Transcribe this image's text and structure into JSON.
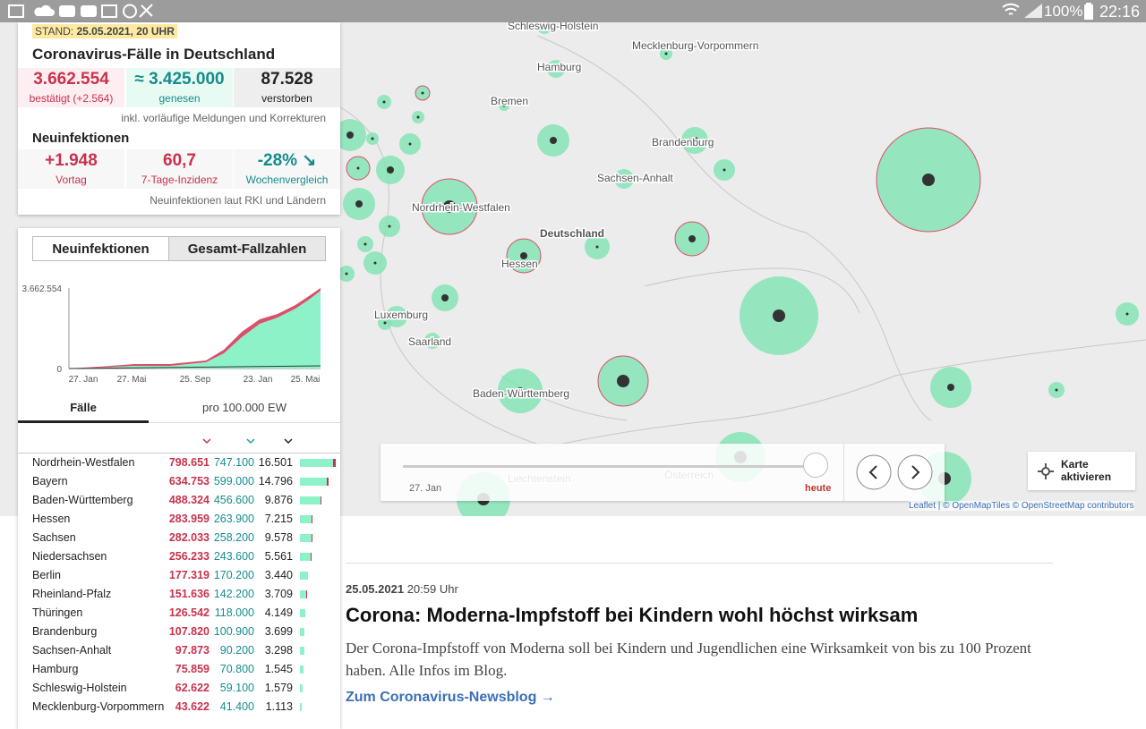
{
  "status_bar": {
    "battery": "100%",
    "time": "22:16"
  },
  "summary": {
    "stand_label": "STAND:",
    "stand_value": "25.05.2021, 20 UHR",
    "title": "Coronavirus-Fälle in Deutschland",
    "totals": [
      {
        "value": "3.662.554",
        "label": "bestätigt (+2.564)"
      },
      {
        "value": "≈ 3.425.000",
        "label": "genesen"
      },
      {
        "value": "87.528",
        "label": "verstorben"
      }
    ],
    "totals_note": "inkl. vorläufige Meldungen und Korrekturen",
    "new_heading": "Neuinfektionen",
    "new": [
      {
        "value": "+1.948",
        "label": "Vortag"
      },
      {
        "value": "60,7",
        "label": "7-Tage-Inzidenz"
      },
      {
        "value": "-28% ↘",
        "label": "Wochenvergleich"
      }
    ],
    "new_note": "Neuinfektionen laut RKI und Ländern"
  },
  "tabs": [
    "Neuinfektionen",
    "Gesamt-Fallzahlen"
  ],
  "mini_chart": {
    "yticks": [
      "3.662.554",
      "0"
    ],
    "xticks": [
      "27. Jan",
      "27. Mai",
      "25. Sep",
      "23. Jan",
      "25. Mai"
    ]
  },
  "subtabs": [
    "Fälle",
    "pro 100.000 EW"
  ],
  "table": {
    "rows": [
      [
        "Nordrhein-Westfalen",
        "798.651",
        "747.100",
        "16.501"
      ],
      [
        "Bayern",
        "634.753",
        "599.000",
        "14.796"
      ],
      [
        "Baden-Württemberg",
        "488.324",
        "456.600",
        "9.876"
      ],
      [
        "Hessen",
        "283.959",
        "263.900",
        "7.215"
      ],
      [
        "Sachsen",
        "282.033",
        "258.200",
        "9.578"
      ],
      [
        "Niedersachsen",
        "256.233",
        "243.600",
        "5.561"
      ],
      [
        "Berlin",
        "177.319",
        "170.200",
        "3.440"
      ],
      [
        "Rheinland-Pfalz",
        "151.636",
        "142.200",
        "3.709"
      ],
      [
        "Thüringen",
        "126.542",
        "118.000",
        "4.149"
      ],
      [
        "Brandenburg",
        "107.820",
        "100.900",
        "3.699"
      ],
      [
        "Sachsen-Anhalt",
        "97.873",
        "90.200",
        "3.298"
      ],
      [
        "Hamburg",
        "75.859",
        "70.800",
        "1.545"
      ],
      [
        "Schleswig-Holstein",
        "62.622",
        "59.100",
        "1.579"
      ],
      [
        "Mecklenburg-Vorpommern",
        "43.622",
        "41.400",
        "1.113"
      ]
    ]
  },
  "map": {
    "labels": [
      "Schleswig-Holstein",
      "Mecklenburg-Vorpommern",
      "Hamburg",
      "Bremen",
      "Brandenburg",
      "Sachsen-Anhalt",
      "Nordrhein-Westfalen",
      "Deutschland",
      "Hessen",
      "Luxemburg",
      "Saarland",
      "Baden-Württemberg",
      "Liechtenstein",
      "Österreich"
    ],
    "timeline_start": "27. Jan",
    "timeline_end": "heute",
    "activate": "Karte aktivieren",
    "attribution": "Leaflet | © OpenMapTiles © OpenStreetMap contributors"
  },
  "article": {
    "date": "25.05.2021",
    "time": "20:59 Uhr",
    "headline": "Corona: Moderna-Impfstoff bei Kindern wohl höchst wirksam",
    "body": "Der Corona-Impfstoff von Moderna soll bei Kindern und Jugendlichen eine Wirksamkeit von bis zu 100 Prozent haben. Alle Infos im Blog.",
    "link": "Zum Coronavirus-Newsblog →"
  }
}
